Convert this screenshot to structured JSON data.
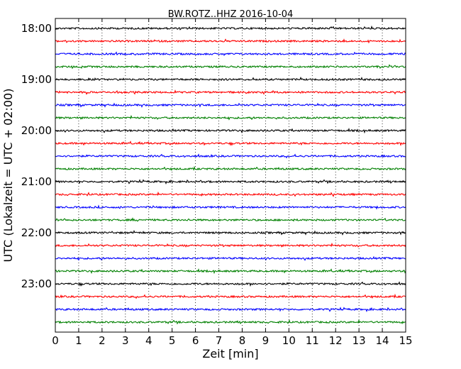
{
  "chart_data": {
    "type": "line",
    "title": "BW.ROTZ..HHZ 2016-10-04",
    "xlabel": "Zeit  [min]",
    "ylabel": "UTC (Lokalzeit = UTC + 02:00)",
    "x_ticks": [
      0,
      1,
      2,
      3,
      4,
      5,
      6,
      7,
      8,
      9,
      10,
      11,
      12,
      13,
      14,
      15
    ],
    "xlim": [
      0,
      15
    ],
    "y_tick_labels": [
      "18:00",
      "19:00",
      "20:00",
      "21:00",
      "22:00",
      "23:00"
    ],
    "trace_start_times": [
      "18:00",
      "18:15",
      "18:30",
      "18:45",
      "19:00",
      "19:15",
      "19:30",
      "19:45",
      "20:00",
      "20:15",
      "20:30",
      "20:45",
      "21:00",
      "21:15",
      "21:30",
      "21:45",
      "22:00",
      "22:15",
      "22:30",
      "22:45",
      "23:00",
      "23:15",
      "23:30",
      "23:45"
    ],
    "trace_minutes_per_row": 15,
    "color_cycle": [
      "#000000",
      "#ff0000",
      "#0000ff",
      "#008000"
    ],
    "grid": "vertical dotted"
  }
}
